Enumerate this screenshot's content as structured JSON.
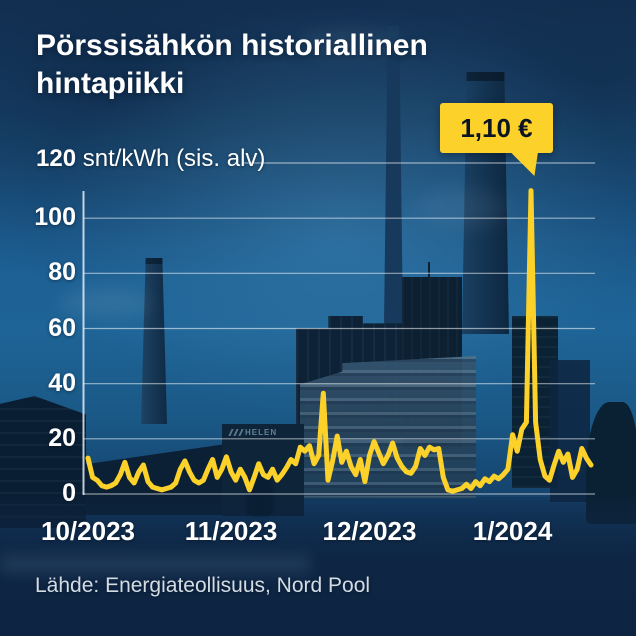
{
  "title": "Pörssisähkön historiallinen hintapiikki",
  "y_axis": {
    "max_label": "120",
    "unit_suffix": " snt/kWh (sis. alv)"
  },
  "callout": {
    "text": "1,10 €"
  },
  "footer": {
    "source": "Lähde: Energiateollisuus, Nord Pool"
  },
  "background": {
    "helen_logo": "HELEN"
  },
  "colors": {
    "line": "#fcd12a",
    "callout_bg": "#fcd12a",
    "grid": "rgba(255,255,255,0.55)",
    "axis": "rgba(222,235,244,0.85)",
    "text": "#ffffff"
  },
  "chart_data": {
    "type": "line",
    "title": "Pörssisähkön historiallinen hintapiikki",
    "ylabel": "snt/kWh (sis. alv)",
    "ylim": [
      0,
      120
    ],
    "yticks": [
      0,
      20,
      40,
      60,
      80,
      100,
      120
    ],
    "x_tick_labels": [
      "10/2023",
      "11/2023",
      "12/2023",
      "1/2024"
    ],
    "month_start_indices": [
      0,
      31,
      61,
      92
    ],
    "x_unit": "day",
    "grid": true,
    "legend": false,
    "values": [
      13,
      6,
      5,
      3,
      2.5,
      3,
      4,
      7,
      11.5,
      6,
      4,
      8,
      10.5,
      4.5,
      2.5,
      2,
      1.5,
      2,
      2.5,
      4,
      9,
      12,
      8,
      5,
      4,
      5,
      9,
      12.5,
      6,
      9,
      13.5,
      8,
      5,
      9,
      6,
      1.5,
      6,
      11,
      7,
      6,
      9,
      5,
      7,
      9.5,
      12.5,
      11,
      17,
      15.5,
      17.5,
      11,
      14,
      36.5,
      5,
      12,
      21,
      11.5,
      15.5,
      10,
      7,
      12.5,
      4.5,
      14,
      19,
      15,
      11,
      14,
      18.5,
      13,
      10,
      8,
      7.5,
      10,
      16.5,
      14,
      17,
      16,
      16.5,
      6,
      1.5,
      1,
      1.5,
      2,
      3.5,
      2,
      4.5,
      3,
      5.5,
      4.5,
      6.5,
      5.5,
      7,
      9,
      21.5,
      15.5,
      23.5,
      26,
      110,
      26,
      12.5,
      6.5,
      5,
      10.5,
      15.5,
      11.5,
      14.5,
      6,
      9,
      16.5,
      13,
      10.5
    ],
    "annotation": {
      "label": "1,10 €",
      "index": 96,
      "value": 110
    }
  }
}
